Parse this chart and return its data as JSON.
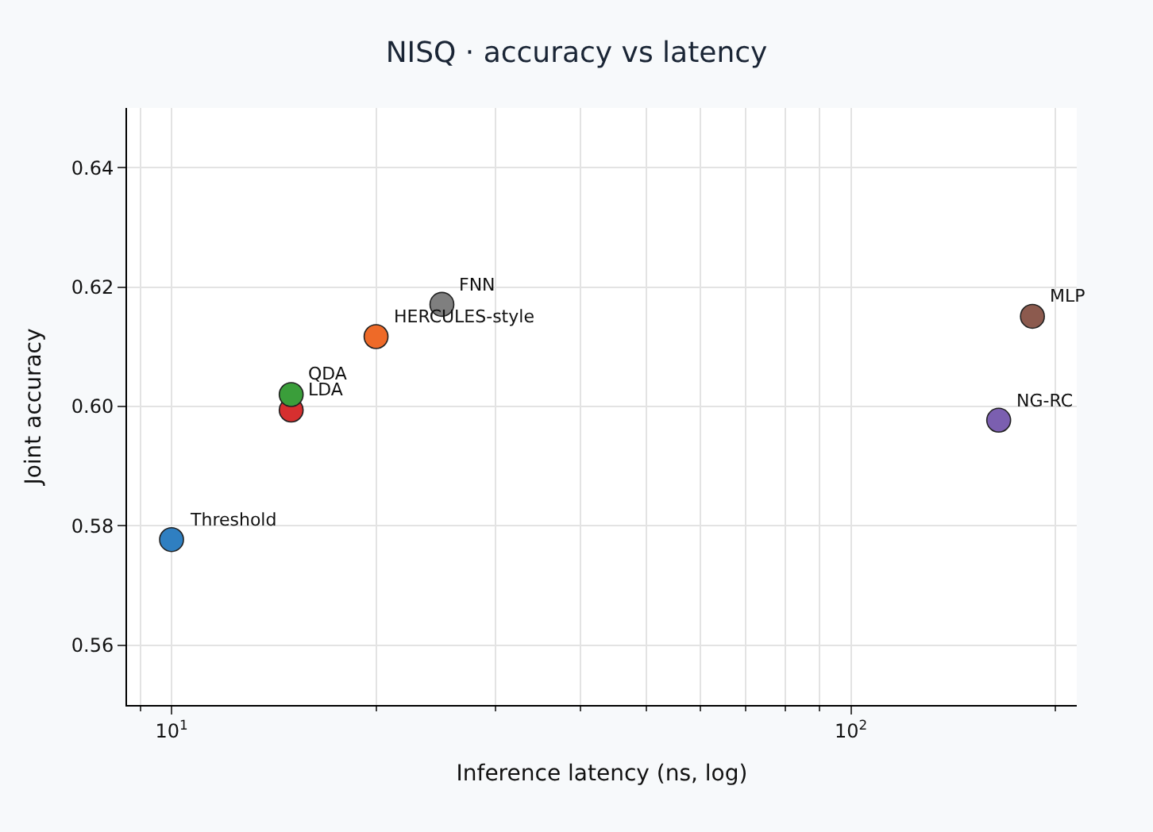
{
  "chart_data": {
    "type": "scatter",
    "title": "NISQ · accuracy vs latency",
    "xlabel": "Inference latency (ns, log)",
    "ylabel": "Joint accuracy",
    "log": "x",
    "grid": true,
    "legend": false,
    "marker": "circle",
    "xlim": [
      8.6,
      215
    ],
    "xticks": [
      {
        "value": 10,
        "label": "10$^{1}$"
      },
      {
        "value": 100,
        "label": "10$^{2}$"
      }
    ],
    "ylim": [
      0.55,
      0.65
    ],
    "yticks": [
      {
        "value": 0.56,
        "label": "0.56"
      },
      {
        "value": 0.58,
        "label": "0.58"
      },
      {
        "value": 0.6,
        "label": "0.60"
      },
      {
        "value": 0.62,
        "label": "0.62"
      },
      {
        "value": 0.64,
        "label": "0.64"
      }
    ],
    "series": [
      {
        "name": "Threshold",
        "color": "#2f7fc1",
        "x": [
          10
        ],
        "values": [
          0.5777
        ]
      },
      {
        "name": "LDA",
        "color": "#d62f2f",
        "x": [
          15
        ],
        "values": [
          0.5994
        ]
      },
      {
        "name": "QDA",
        "color": "#3a9e3a",
        "x": [
          15
        ],
        "values": [
          0.602
        ]
      },
      {
        "name": "HERCULES-style",
        "color": "#ee6a28",
        "x": [
          20
        ],
        "values": [
          0.6117
        ]
      },
      {
        "name": "FNN",
        "color": "#7f7f7f",
        "x": [
          25
        ],
        "values": [
          0.6171
        ]
      },
      {
        "name": "NG-RC",
        "color": "#7b5fb0",
        "x": [
          165
        ],
        "values": [
          0.5977
        ]
      },
      {
        "name": "MLP",
        "color": "#8c5a4e",
        "x": [
          185
        ],
        "values": [
          0.6151
        ]
      }
    ]
  }
}
